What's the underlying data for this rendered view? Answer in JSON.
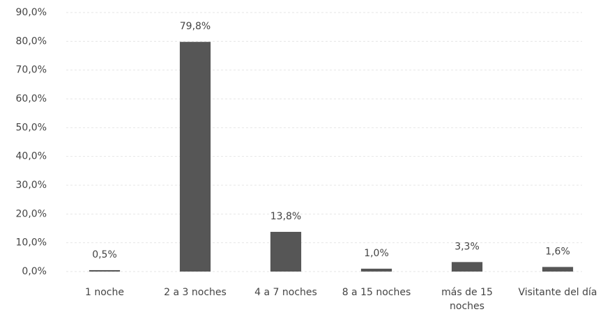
{
  "chart_data": {
    "type": "bar",
    "categories": [
      "1 noche",
      "2 a 3 noches",
      "4 a 7 noches",
      "8 a 15 noches",
      "más de 15 noches",
      "Visitante del día"
    ],
    "values": [
      0.5,
      79.8,
      13.8,
      1.0,
      3.3,
      1.6
    ],
    "value_labels": [
      "0,5%",
      "79,8%",
      "13,8%",
      "1,0%",
      "3,3%",
      "1,6%"
    ],
    "color": "#565656",
    "ylim": [
      0,
      90
    ],
    "yticks": [
      {
        "value": 0,
        "label": "0,0%"
      },
      {
        "value": 10,
        "label": "10,0%"
      },
      {
        "value": 20,
        "label": "20,0%"
      },
      {
        "value": 30,
        "label": "30,0%"
      },
      {
        "value": 40,
        "label": "40,0%"
      },
      {
        "value": 50,
        "label": "50,0%"
      },
      {
        "value": 60,
        "label": "60,0%"
      },
      {
        "value": 70,
        "label": "70,0%"
      },
      {
        "value": 80,
        "label": "80,0%"
      },
      {
        "value": 90,
        "label": "90,0%"
      }
    ],
    "grid": true
  }
}
